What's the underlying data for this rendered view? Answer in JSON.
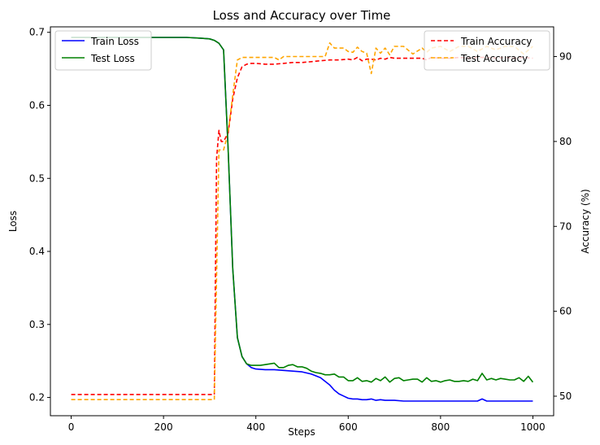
{
  "chart_data": {
    "type": "line",
    "title": "Loss and Accuracy over Time",
    "xlabel": "Steps",
    "ylabel_left": "Loss",
    "ylabel_right": "Accuracy (%)",
    "xlim": [
      -45,
      1045
    ],
    "ylim_left": [
      0.175,
      0.7075
    ],
    "ylim_right": [
      47.7,
      93.5
    ],
    "xticks": [
      0,
      200,
      400,
      600,
      800,
      1000
    ],
    "yticks_left": [
      0.2,
      0.3,
      0.4,
      0.5,
      0.6,
      0.7
    ],
    "yticks_right": [
      50,
      60,
      70,
      80,
      90
    ],
    "grid": false,
    "legend_left_position": "top-left",
    "legend_right_position": "top-right",
    "series": [
      {
        "name": "Train Loss",
        "axis": "left",
        "color": "#0000ff",
        "style": "solid",
        "x": [
          0,
          50,
          100,
          150,
          200,
          250,
          280,
          300,
          310,
          320,
          330,
          340,
          350,
          360,
          370,
          380,
          390,
          400,
          420,
          440,
          460,
          480,
          500,
          520,
          540,
          560,
          570,
          580,
          590,
          600,
          610,
          620,
          630,
          640,
          650,
          660,
          670,
          680,
          690,
          700,
          720,
          740,
          760,
          780,
          800,
          820,
          840,
          860,
          880,
          890,
          900,
          920,
          940,
          960,
          980,
          1000
        ],
        "y": [
          0.693,
          0.693,
          0.693,
          0.693,
          0.693,
          0.693,
          0.692,
          0.691,
          0.689,
          0.685,
          0.676,
          0.54,
          0.376,
          0.282,
          0.256,
          0.246,
          0.241,
          0.239,
          0.238,
          0.238,
          0.237,
          0.236,
          0.235,
          0.232,
          0.227,
          0.217,
          0.21,
          0.205,
          0.202,
          0.199,
          0.198,
          0.198,
          0.197,
          0.197,
          0.198,
          0.196,
          0.197,
          0.196,
          0.196,
          0.196,
          0.195,
          0.195,
          0.195,
          0.195,
          0.195,
          0.195,
          0.195,
          0.195,
          0.195,
          0.198,
          0.195,
          0.195,
          0.195,
          0.195,
          0.195,
          0.195
        ]
      },
      {
        "name": "Test Loss",
        "axis": "left",
        "color": "#008000",
        "style": "solid",
        "x": [
          0,
          50,
          100,
          150,
          200,
          250,
          280,
          300,
          310,
          320,
          330,
          340,
          350,
          360,
          370,
          380,
          390,
          400,
          410,
          420,
          430,
          440,
          450,
          460,
          470,
          480,
          490,
          500,
          510,
          520,
          530,
          540,
          550,
          560,
          570,
          580,
          590,
          600,
          610,
          620,
          630,
          640,
          650,
          660,
          670,
          680,
          690,
          700,
          710,
          720,
          730,
          740,
          750,
          760,
          770,
          780,
          790,
          800,
          810,
          820,
          830,
          840,
          850,
          860,
          870,
          880,
          890,
          900,
          910,
          920,
          930,
          940,
          950,
          960,
          970,
          980,
          990,
          1000
        ],
        "y": [
          0.693,
          0.693,
          0.693,
          0.693,
          0.693,
          0.693,
          0.692,
          0.691,
          0.689,
          0.685,
          0.676,
          0.54,
          0.376,
          0.282,
          0.256,
          0.246,
          0.244,
          0.244,
          0.244,
          0.245,
          0.246,
          0.247,
          0.241,
          0.241,
          0.244,
          0.245,
          0.242,
          0.242,
          0.24,
          0.236,
          0.234,
          0.233,
          0.231,
          0.231,
          0.232,
          0.228,
          0.228,
          0.223,
          0.223,
          0.227,
          0.222,
          0.223,
          0.221,
          0.226,
          0.223,
          0.228,
          0.221,
          0.226,
          0.227,
          0.223,
          0.224,
          0.225,
          0.225,
          0.221,
          0.227,
          0.222,
          0.223,
          0.221,
          0.223,
          0.224,
          0.222,
          0.222,
          0.223,
          0.222,
          0.225,
          0.223,
          0.233,
          0.224,
          0.226,
          0.224,
          0.226,
          0.225,
          0.224,
          0.224,
          0.227,
          0.222,
          0.229,
          0.221
        ]
      },
      {
        "name": "Train Accuracy",
        "axis": "right",
        "color": "#ff0000",
        "style": "dashed",
        "x": [
          0,
          50,
          100,
          150,
          200,
          250,
          280,
          300,
          310,
          315,
          320,
          325,
          330,
          340,
          350,
          360,
          370,
          380,
          390,
          400,
          420,
          440,
          460,
          480,
          500,
          520,
          540,
          560,
          580,
          600,
          610,
          620,
          630,
          640,
          650,
          660,
          670,
          680,
          690,
          700,
          720,
          740,
          760,
          770,
          780,
          800,
          820,
          840,
          860,
          880,
          900,
          920,
          940,
          960,
          980,
          1000
        ],
        "y": [
          50.2,
          50.2,
          50.2,
          50.2,
          50.2,
          50.2,
          50.2,
          50.2,
          50.2,
          78.0,
          81.3,
          80.0,
          80.0,
          81.0,
          85.0,
          87.5,
          88.8,
          89.1,
          89.2,
          89.2,
          89.1,
          89.1,
          89.2,
          89.3,
          89.3,
          89.4,
          89.5,
          89.6,
          89.6,
          89.7,
          89.6,
          89.9,
          89.5,
          89.7,
          89.7,
          89.6,
          89.8,
          89.7,
          89.9,
          89.8,
          89.8,
          89.8,
          89.8,
          89.6,
          89.9,
          89.8,
          89.8,
          89.9,
          89.8,
          89.9,
          89.9,
          89.8,
          89.9,
          89.8,
          89.9,
          89.8
        ]
      },
      {
        "name": "Test Accuracy",
        "axis": "right",
        "color": "#ffa500",
        "style": "dashed",
        "x": [
          0,
          50,
          100,
          150,
          200,
          250,
          280,
          300,
          310,
          320,
          330,
          340,
          350,
          360,
          370,
          380,
          390,
          400,
          420,
          440,
          450,
          460,
          480,
          500,
          520,
          540,
          550,
          560,
          570,
          580,
          590,
          600,
          610,
          620,
          630,
          640,
          650,
          660,
          670,
          680,
          690,
          700,
          720,
          740,
          760,
          770,
          780,
          800,
          820,
          840,
          860,
          880,
          900,
          920,
          940,
          960,
          980,
          1000
        ],
        "y": [
          49.6,
          49.6,
          49.6,
          49.6,
          49.6,
          49.6,
          49.6,
          49.6,
          49.6,
          79.0,
          79.0,
          81.0,
          85.5,
          89.6,
          89.9,
          89.9,
          89.9,
          89.9,
          89.9,
          89.9,
          89.6,
          90.0,
          90.0,
          90.0,
          90.0,
          90.0,
          90.0,
          91.6,
          91.0,
          91.0,
          91.0,
          90.6,
          90.5,
          91.1,
          90.6,
          90.4,
          88.0,
          91.0,
          90.4,
          91.0,
          90.2,
          91.2,
          91.2,
          90.3,
          91.0,
          90.5,
          91.0,
          91.2,
          90.6,
          91.2,
          91.2,
          90.6,
          91.2,
          90.8,
          91.2,
          91.2,
          90.3,
          91.2
        ]
      }
    ]
  }
}
